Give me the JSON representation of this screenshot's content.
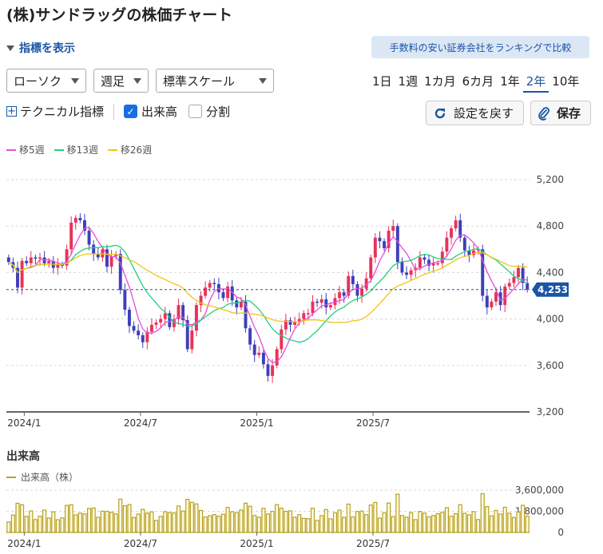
{
  "header": {
    "title": "(株)サンドラッグの株価チャート",
    "toggle_label": "指標を表示",
    "banner": "手数料の安い証券会社をランキングで比較"
  },
  "controls": {
    "chart_type": "ローソク",
    "interval": "週足",
    "scale": "標準スケール",
    "periods": [
      "1日",
      "1週",
      "1カ月",
      "6カ月",
      "1年",
      "2年",
      "10年"
    ],
    "active_period": "2年",
    "technical_label": "テクニカル指標",
    "volume_label": "出来高",
    "split_label": "分割",
    "reset_label": "設定を戻す",
    "save_label": "保存"
  },
  "legend": {
    "ma5": "移5週",
    "ma13": "移13週",
    "ma26": "移26週"
  },
  "colors": {
    "up": "#e8325a",
    "down": "#3f3fb8",
    "ma5": "#e64ddb",
    "ma13": "#22d07a",
    "ma26": "#f0c419",
    "volume": "#b8a020",
    "current": "#1a55a5"
  },
  "chart_data": {
    "type": "candlestick",
    "interval": "weekly",
    "x_ticks": [
      "2024/1",
      "2024/7",
      "2025/1",
      "2025/7"
    ],
    "y_ticks": [
      "5,200",
      "4,800",
      "4,400",
      "4,000",
      "3,600",
      "3,200"
    ],
    "ylim": [
      3200,
      5200
    ],
    "current_price": 4253,
    "current_price_label": "4,253",
    "closes": [
      4490,
      4440,
      4270,
      4500,
      4480,
      4530,
      4520,
      4530,
      4480,
      4500,
      4440,
      4470,
      4460,
      4600,
      4830,
      4870,
      4850,
      4760,
      4640,
      4560,
      4530,
      4600,
      4450,
      4540,
      4560,
      4250,
      4080,
      3940,
      3900,
      3860,
      3800,
      3890,
      3950,
      3970,
      4000,
      4050,
      3930,
      4000,
      4120,
      3990,
      3740,
      3900,
      4120,
      4200,
      4270,
      4310,
      4300,
      4230,
      4180,
      4280,
      4160,
      4100,
      4150,
      3920,
      3780,
      3690,
      3710,
      3610,
      3510,
      3600,
      3740,
      3910,
      3990,
      3950,
      3980,
      4000,
      4050,
      4050,
      4150,
      4140,
      4170,
      4100,
      4120,
      4180,
      4230,
      4200,
      4370,
      4300,
      4200,
      4260,
      4350,
      4530,
      4700,
      4670,
      4610,
      4760,
      4800,
      4490,
      4400,
      4380,
      4420,
      4440,
      4530,
      4510,
      4460,
      4480,
      4480,
      4580,
      4700,
      4780,
      4850,
      4700,
      4590,
      4550,
      4590,
      4600,
      4200,
      4100,
      4150,
      4230,
      4120,
      4280,
      4310,
      4360,
      4440,
      4310,
      4253
    ],
    "volume": {
      "title": "出来高",
      "legend": "出来高（株）",
      "y_ticks": [
        "3,600,000",
        "1,800,000",
        "0"
      ],
      "ylim": [
        0,
        3600000
      ]
    }
  }
}
